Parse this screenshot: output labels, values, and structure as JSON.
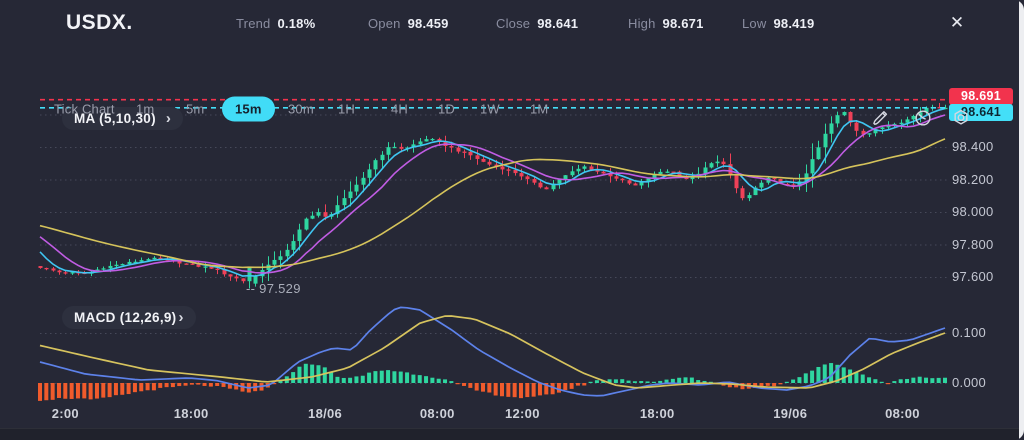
{
  "app": {
    "title": "USDX.",
    "close_icon": "✕"
  },
  "header_stats": [
    {
      "label": "Trend",
      "value": "0.18%"
    },
    {
      "label": "Open",
      "value": "98.459"
    },
    {
      "label": "Close",
      "value": "98.641"
    },
    {
      "label": "High",
      "value": "98.671"
    },
    {
      "label": "Low",
      "value": "98.419"
    }
  ],
  "toolbar": {
    "timeframes": [
      "Tick Chart",
      "1m",
      "5m",
      "15m",
      "30m",
      "1H",
      "4H",
      "1D",
      "1W",
      "1M"
    ],
    "active_timeframe": "15m",
    "icons": [
      "edit-icon",
      "history-icon",
      "settings-icon"
    ]
  },
  "colors": {
    "bg": "#262836",
    "green": "#2fd6a0",
    "red": "#ef4158",
    "hist_neg": "#f05b2c",
    "macd_blue": "#5d82ea",
    "signal_yellow": "#d6c35e",
    "ma5": "#3fc6f2",
    "ma10": "#c05ce3",
    "ma30": "#d5c35b",
    "badge_red": "#f2334d",
    "badge_cyan": "#43dff8",
    "accent": "#41dcf7",
    "grid": "rgba(200,205,230,0.20)"
  },
  "chart_data": {
    "type": "candlestick",
    "symbol": "USDX",
    "timeframe": "15m",
    "ohlc_summary": {
      "open": 98.459,
      "close": 98.641,
      "high": 98.671,
      "low": 98.419,
      "trend_pct": "0.18%"
    },
    "price_axis": {
      "ticks": [
        "98.600",
        "98.400",
        "98.200",
        "98.000",
        "97.800",
        "97.600"
      ],
      "badges": [
        {
          "text": "98.691",
          "value": 98.691,
          "bg": "#f2334d",
          "fg": "#ffffff"
        },
        {
          "text": "98.641",
          "value": 98.641,
          "bg": "#43dff8",
          "fg": "#0d2733"
        }
      ]
    },
    "levels": [
      {
        "value": 98.691,
        "color": "#f2334d",
        "style": "dashed"
      },
      {
        "value": 98.641,
        "color": "#43dff8",
        "style": "dashed"
      }
    ],
    "low_annotation": {
      "text": "-- 97.529",
      "t": 0.231,
      "price": 97.529
    },
    "candles": {
      "count": 144,
      "low_point": {
        "t": 0.231,
        "price": 97.529
      },
      "high_point": {
        "price": 98.671
      },
      "last_close": 98.641,
      "path": [
        [
          0,
          97.66
        ],
        [
          0.02,
          97.63
        ],
        [
          0.05,
          97.62
        ],
        [
          0.07,
          97.66
        ],
        [
          0.1,
          97.69
        ],
        [
          0.12,
          97.715
        ],
        [
          0.145,
          97.7
        ],
        [
          0.17,
          97.67
        ],
        [
          0.19,
          97.655
        ],
        [
          0.205,
          97.615
        ],
        [
          0.222,
          97.58
        ],
        [
          0.231,
          97.56
        ],
        [
          0.245,
          97.65
        ],
        [
          0.262,
          97.71
        ],
        [
          0.278,
          97.8
        ],
        [
          0.295,
          97.97
        ],
        [
          0.308,
          98.0
        ],
        [
          0.318,
          97.95
        ],
        [
          0.33,
          98.06
        ],
        [
          0.345,
          98.13
        ],
        [
          0.358,
          98.22
        ],
        [
          0.372,
          98.33
        ],
        [
          0.388,
          98.41
        ],
        [
          0.402,
          98.385
        ],
        [
          0.418,
          98.43
        ],
        [
          0.428,
          98.455
        ],
        [
          0.44,
          98.43
        ],
        [
          0.458,
          98.385
        ],
        [
          0.475,
          98.35
        ],
        [
          0.492,
          98.3
        ],
        [
          0.51,
          98.27
        ],
        [
          0.528,
          98.235
        ],
        [
          0.545,
          98.175
        ],
        [
          0.558,
          98.14
        ],
        [
          0.573,
          98.2
        ],
        [
          0.59,
          98.255
        ],
        [
          0.602,
          98.28
        ],
        [
          0.617,
          98.245
        ],
        [
          0.632,
          98.22
        ],
        [
          0.645,
          98.185
        ],
        [
          0.657,
          98.16
        ],
        [
          0.672,
          98.21
        ],
        [
          0.688,
          98.255
        ],
        [
          0.702,
          98.245
        ],
        [
          0.716,
          98.195
        ],
        [
          0.73,
          98.25
        ],
        [
          0.744,
          98.31
        ],
        [
          0.756,
          98.3
        ],
        [
          0.768,
          98.15
        ],
        [
          0.778,
          98.07
        ],
        [
          0.792,
          98.16
        ],
        [
          0.806,
          98.21
        ],
        [
          0.82,
          98.175
        ],
        [
          0.833,
          98.15
        ],
        [
          0.845,
          98.23
        ],
        [
          0.857,
          98.36
        ],
        [
          0.869,
          98.5
        ],
        [
          0.879,
          98.585
        ],
        [
          0.888,
          98.615
        ],
        [
          0.9,
          98.51
        ],
        [
          0.912,
          98.475
        ],
        [
          0.925,
          98.51
        ],
        [
          0.94,
          98.545
        ],
        [
          0.955,
          98.56
        ],
        [
          0.968,
          98.6
        ],
        [
          0.982,
          98.655
        ],
        [
          1,
          98.641
        ]
      ],
      "warmup_path": [
        [
          -0.25,
          97.95
        ],
        [
          -0.12,
          97.8
        ],
        [
          -0.05,
          97.71
        ],
        [
          -0.01,
          97.67
        ]
      ]
    },
    "ma": {
      "label": "MA (5,10,30)",
      "chevron": "›",
      "periods": [
        5,
        10,
        30
      ],
      "colors": [
        "#3fc6f2",
        "#c05ce3",
        "#d5c35b"
      ]
    },
    "macd": {
      "label": "MACD (12,26,9)",
      "chevron": "›",
      "axis_ticks": [
        "0.100",
        "0.000"
      ],
      "macd_line": [
        [
          0,
          0.042
        ],
        [
          0.05,
          0.018
        ],
        [
          0.11,
          0.006
        ],
        [
          0.165,
          0.01
        ],
        [
          0.195,
          0.005
        ],
        [
          0.23,
          -0.01
        ],
        [
          0.255,
          -0.004
        ],
        [
          0.285,
          0.042
        ],
        [
          0.31,
          0.062
        ],
        [
          0.325,
          0.07
        ],
        [
          0.345,
          0.066
        ],
        [
          0.365,
          0.106
        ],
        [
          0.39,
          0.146
        ],
        [
          0.4,
          0.152
        ],
        [
          0.42,
          0.146
        ],
        [
          0.455,
          0.106
        ],
        [
          0.485,
          0.066
        ],
        [
          0.52,
          0.03
        ],
        [
          0.55,
          0.002
        ],
        [
          0.575,
          -0.014
        ],
        [
          0.6,
          -0.024
        ],
        [
          0.62,
          -0.026
        ],
        [
          0.65,
          -0.014
        ],
        [
          0.675,
          -0.004
        ],
        [
          0.695,
          0.0
        ],
        [
          0.73,
          -0.004
        ],
        [
          0.76,
          0.002
        ],
        [
          0.795,
          -0.01
        ],
        [
          0.825,
          -0.014
        ],
        [
          0.85,
          -0.006
        ],
        [
          0.872,
          0.01
        ],
        [
          0.895,
          0.056
        ],
        [
          0.917,
          0.09
        ],
        [
          0.94,
          0.082
        ],
        [
          0.962,
          0.086
        ],
        [
          1,
          0.11
        ]
      ],
      "signal_line": [
        [
          0,
          0.075
        ],
        [
          0.06,
          0.05
        ],
        [
          0.12,
          0.026
        ],
        [
          0.2,
          0.012
        ],
        [
          0.25,
          0.002
        ],
        [
          0.3,
          0.012
        ],
        [
          0.34,
          0.03
        ],
        [
          0.38,
          0.07
        ],
        [
          0.42,
          0.12
        ],
        [
          0.45,
          0.135
        ],
        [
          0.48,
          0.128
        ],
        [
          0.52,
          0.098
        ],
        [
          0.56,
          0.058
        ],
        [
          0.6,
          0.02
        ],
        [
          0.635,
          -0.004
        ],
        [
          0.66,
          -0.01
        ],
        [
          0.7,
          -0.004
        ],
        [
          0.73,
          0.0
        ],
        [
          0.765,
          -0.002
        ],
        [
          0.8,
          -0.008
        ],
        [
          0.85,
          -0.01
        ],
        [
          0.88,
          0.004
        ],
        [
          0.91,
          0.028
        ],
        [
          0.94,
          0.058
        ],
        [
          0.97,
          0.08
        ],
        [
          1,
          0.1
        ]
      ],
      "histogram": [
        [
          0,
          -0.034
        ],
        [
          0.03,
          -0.03
        ],
        [
          0.06,
          -0.034
        ],
        [
          0.09,
          -0.024
        ],
        [
          0.12,
          -0.014
        ],
        [
          0.15,
          -0.008
        ],
        [
          0.17,
          -0.004
        ],
        [
          0.19,
          -0.006
        ],
        [
          0.21,
          -0.012
        ],
        [
          0.23,
          -0.02
        ],
        [
          0.25,
          -0.012
        ],
        [
          0.265,
          0.004
        ],
        [
          0.28,
          0.024
        ],
        [
          0.295,
          0.04
        ],
        [
          0.31,
          0.036
        ],
        [
          0.325,
          0.016
        ],
        [
          0.34,
          0.008
        ],
        [
          0.355,
          0.014
        ],
        [
          0.37,
          0.024
        ],
        [
          0.385,
          0.026
        ],
        [
          0.4,
          0.022
        ],
        [
          0.415,
          0.018
        ],
        [
          0.43,
          0.014
        ],
        [
          0.445,
          0.008
        ],
        [
          0.455,
          0.002
        ],
        [
          0.465,
          -0.006
        ],
        [
          0.48,
          -0.014
        ],
        [
          0.5,
          -0.022
        ],
        [
          0.52,
          -0.028
        ],
        [
          0.54,
          -0.03
        ],
        [
          0.555,
          -0.026
        ],
        [
          0.57,
          -0.02
        ],
        [
          0.585,
          -0.012
        ],
        [
          0.6,
          -0.004
        ],
        [
          0.615,
          0.004
        ],
        [
          0.63,
          0.008
        ],
        [
          0.65,
          0.006
        ],
        [
          0.665,
          0.004
        ],
        [
          0.68,
          0.002
        ],
        [
          0.695,
          0.006
        ],
        [
          0.71,
          0.012
        ],
        [
          0.725,
          0.008
        ],
        [
          0.74,
          0.002
        ],
        [
          0.755,
          -0.004
        ],
        [
          0.77,
          -0.01
        ],
        [
          0.785,
          -0.012
        ],
        [
          0.8,
          -0.008
        ],
        [
          0.815,
          -0.004
        ],
        [
          0.83,
          0.006
        ],
        [
          0.845,
          0.018
        ],
        [
          0.86,
          0.032
        ],
        [
          0.87,
          0.04
        ],
        [
          0.88,
          0.036
        ],
        [
          0.895,
          0.028
        ],
        [
          0.91,
          0.016
        ],
        [
          0.925,
          0.006
        ],
        [
          0.935,
          -0.002
        ],
        [
          0.945,
          0.004
        ],
        [
          0.96,
          0.01
        ],
        [
          0.975,
          0.012
        ],
        [
          1,
          0.01
        ]
      ]
    },
    "time_axis": [
      {
        "t": 0.028,
        "label": "2:00"
      },
      {
        "t": 0.167,
        "label": "18:00"
      },
      {
        "t": 0.315,
        "label": "18/06"
      },
      {
        "t": 0.439,
        "label": "08:00"
      },
      {
        "t": 0.533,
        "label": "12:00"
      },
      {
        "t": 0.682,
        "label": "18:00"
      },
      {
        "t": 0.829,
        "label": "19/06"
      },
      {
        "t": 0.953,
        "label": "08:00"
      }
    ]
  }
}
